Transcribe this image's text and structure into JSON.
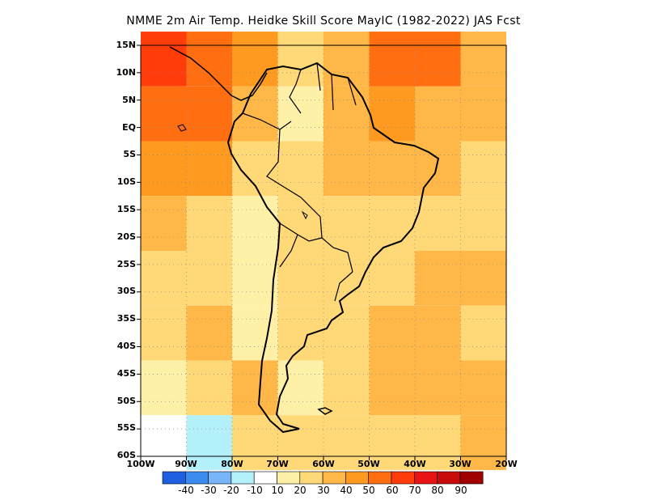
{
  "title": "NMME  2m Air Temp. Heidke Skill Score MayIC (1982-2022) JAS Fcst",
  "lat_ticks": [
    "15N",
    "10N",
    "5N",
    "EQ",
    "5S",
    "10S",
    "15S",
    "20S",
    "25S",
    "30S",
    "35S",
    "40S",
    "45S",
    "50S",
    "55S",
    "60S"
  ],
  "lon_ticks": [
    "100W",
    "90W",
    "80W",
    "70W",
    "60W",
    "50W",
    "40W",
    "30W",
    "20W"
  ],
  "map_extent": {
    "lon_min": -100,
    "lon_max": -20,
    "lat_min": -60,
    "lat_max": 15
  },
  "colorbar": {
    "colors": [
      "#1f5fe0",
      "#3c8cf0",
      "#78b4f8",
      "#b4f0fa",
      "#ffffff",
      "#fff0a8",
      "#ffd878",
      "#ffb848",
      "#ff9a20",
      "#ff6e10",
      "#ff3c0a",
      "#e81414",
      "#c80a0a",
      "#a00000"
    ],
    "labels": [
      "-40",
      "-30",
      "-20",
      "-10",
      "10",
      "20",
      "30",
      "40",
      "50",
      "60",
      "70",
      "80",
      "90"
    ]
  },
  "chart_data": {
    "type": "heatmap",
    "title": "NMME  2m Air Temp. Heidke Skill Score MayIC (1982-2022) JAS Fcst",
    "xlabel": "",
    "ylabel": "",
    "xlim": [
      -100,
      -20
    ],
    "ylim": [
      -60,
      15
    ],
    "x": [
      -95,
      -85,
      -75,
      -65,
      -55,
      -45,
      -35,
      -25
    ],
    "y": [
      12.5,
      2.5,
      -7.5,
      -17.5,
      -27.5,
      -37.5,
      -47.5,
      -57.5
    ],
    "values": [
      [
        60,
        55,
        45,
        25,
        35,
        50,
        50,
        30
      ],
      [
        55,
        50,
        30,
        15,
        30,
        45,
        35,
        30
      ],
      [
        45,
        45,
        20,
        25,
        30,
        35,
        30,
        25
      ],
      [
        30,
        25,
        15,
        20,
        25,
        25,
        20,
        25
      ],
      [
        25,
        25,
        15,
        25,
        20,
        25,
        35,
        30
      ],
      [
        20,
        30,
        15,
        20,
        25,
        35,
        30,
        25
      ],
      [
        10,
        20,
        30,
        15,
        20,
        35,
        30,
        30
      ],
      [
        -10,
        -20,
        20,
        20,
        20,
        25,
        25,
        30
      ]
    ],
    "levels": [
      -40,
      -30,
      -20,
      -10,
      10,
      20,
      30,
      40,
      50,
      60,
      70,
      80,
      90
    ],
    "grid": true
  }
}
